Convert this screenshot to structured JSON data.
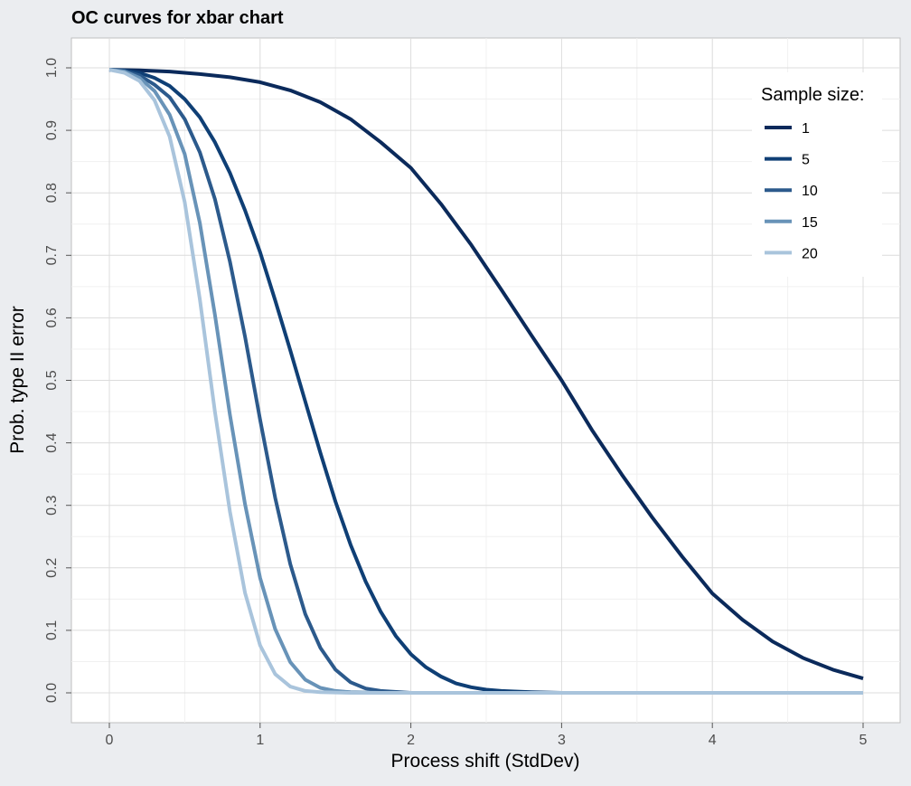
{
  "chart_data": {
    "type": "line",
    "title": "OC curves for xbar chart",
    "xlabel": "Process shift (StdDev)",
    "ylabel": "Prob. type II error",
    "xlim": [
      0,
      5
    ],
    "ylim": [
      0,
      1
    ],
    "xticks": [
      "0",
      "1",
      "2",
      "3",
      "4",
      "5"
    ],
    "yticks": [
      "0.0",
      "0.1",
      "0.2",
      "0.3",
      "0.4",
      "0.5",
      "0.6",
      "0.7",
      "0.8",
      "0.9",
      "1.0"
    ],
    "grid": true,
    "legend": {
      "title": "Sample size:",
      "placement": "top-right"
    },
    "series": [
      {
        "name": "1",
        "color": "#0b2a5b",
        "x": [
          0,
          0.2,
          0.4,
          0.6,
          0.8,
          1.0,
          1.2,
          1.4,
          1.6,
          1.8,
          2.0,
          2.2,
          2.4,
          2.6,
          2.8,
          3.0,
          3.2,
          3.4,
          3.6,
          3.8,
          4.0,
          4.2,
          4.4,
          4.6,
          4.8,
          5.0
        ],
        "y": [
          0.997,
          0.996,
          0.994,
          0.99,
          0.985,
          0.977,
          0.964,
          0.945,
          0.918,
          0.881,
          0.84,
          0.782,
          0.717,
          0.645,
          0.572,
          0.5,
          0.421,
          0.349,
          0.281,
          0.218,
          0.159,
          0.117,
          0.082,
          0.056,
          0.037,
          0.023
        ]
      },
      {
        "name": "5",
        "color": "#0f3f75",
        "x": [
          0,
          0.1,
          0.2,
          0.3,
          0.4,
          0.5,
          0.6,
          0.7,
          0.8,
          0.9,
          1.0,
          1.1,
          1.2,
          1.3,
          1.4,
          1.5,
          1.6,
          1.7,
          1.8,
          1.9,
          2.0,
          2.1,
          2.2,
          2.3,
          2.4,
          2.5,
          2.6,
          2.8,
          3.0,
          5.0
        ],
        "y": [
          0.997,
          0.996,
          0.992,
          0.984,
          0.971,
          0.95,
          0.921,
          0.881,
          0.832,
          0.772,
          0.705,
          0.628,
          0.548,
          0.466,
          0.384,
          0.306,
          0.237,
          0.178,
          0.13,
          0.091,
          0.062,
          0.041,
          0.026,
          0.015,
          0.009,
          0.005,
          0.003,
          0.001,
          0.0,
          0.0
        ]
      },
      {
        "name": "10",
        "color": "#2c5a8c",
        "x": [
          0,
          0.1,
          0.2,
          0.3,
          0.4,
          0.5,
          0.6,
          0.7,
          0.8,
          0.9,
          1.0,
          1.1,
          1.2,
          1.3,
          1.4,
          1.5,
          1.6,
          1.7,
          1.8,
          2.0,
          5.0
        ],
        "y": [
          0.997,
          0.995,
          0.988,
          0.973,
          0.953,
          0.918,
          0.865,
          0.79,
          0.69,
          0.57,
          0.437,
          0.312,
          0.206,
          0.126,
          0.072,
          0.037,
          0.017,
          0.007,
          0.003,
          0.0,
          0.0
        ]
      },
      {
        "name": "15",
        "color": "#6893b8",
        "x": [
          0,
          0.1,
          0.2,
          0.3,
          0.4,
          0.5,
          0.6,
          0.7,
          0.8,
          0.9,
          1.0,
          1.1,
          1.2,
          1.3,
          1.4,
          1.5,
          1.6,
          1.8,
          5.0
        ],
        "y": [
          0.997,
          0.994,
          0.984,
          0.963,
          0.925,
          0.862,
          0.752,
          0.605,
          0.445,
          0.302,
          0.184,
          0.102,
          0.049,
          0.021,
          0.008,
          0.003,
          0.001,
          0.0,
          0.0
        ]
      },
      {
        "name": "20",
        "color": "#a9c4dc",
        "x": [
          0,
          0.1,
          0.2,
          0.3,
          0.4,
          0.5,
          0.6,
          0.7,
          0.8,
          0.9,
          1.0,
          1.1,
          1.2,
          1.3,
          1.4,
          1.6,
          5.0
        ],
        "y": [
          0.997,
          0.992,
          0.979,
          0.948,
          0.89,
          0.785,
          0.63,
          0.45,
          0.29,
          0.16,
          0.076,
          0.03,
          0.01,
          0.003,
          0.001,
          0.0,
          0.0
        ]
      }
    ]
  }
}
